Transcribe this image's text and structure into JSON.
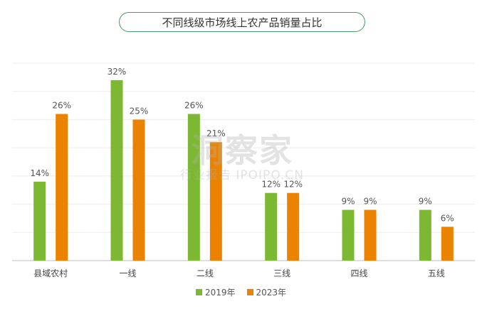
{
  "chart_data": {
    "type": "bar",
    "title": "不同线级市场线上农产品销量占比",
    "categories": [
      "县域农村",
      "一线",
      "二线",
      "三线",
      "四线",
      "五线"
    ],
    "series": [
      {
        "name": "2019年",
        "color": "#7cb832",
        "values": [
          14,
          32,
          26,
          12,
          9,
          9
        ]
      },
      {
        "name": "2023年",
        "color": "#eb8300",
        "values": [
          26,
          25,
          21,
          12,
          9,
          6
        ]
      }
    ],
    "value_labels": [
      [
        "14%",
        "32%",
        "26%",
        "12%",
        "9%",
        "9%"
      ],
      [
        "26%",
        "25%",
        "21%",
        "12%",
        "9%",
        "6%"
      ]
    ],
    "ylim": [
      0,
      35
    ],
    "grid": true,
    "legend_position": "bottom"
  },
  "watermark": {
    "main": "洞察家",
    "sub": "行业报告 IPOIPO.CN"
  }
}
